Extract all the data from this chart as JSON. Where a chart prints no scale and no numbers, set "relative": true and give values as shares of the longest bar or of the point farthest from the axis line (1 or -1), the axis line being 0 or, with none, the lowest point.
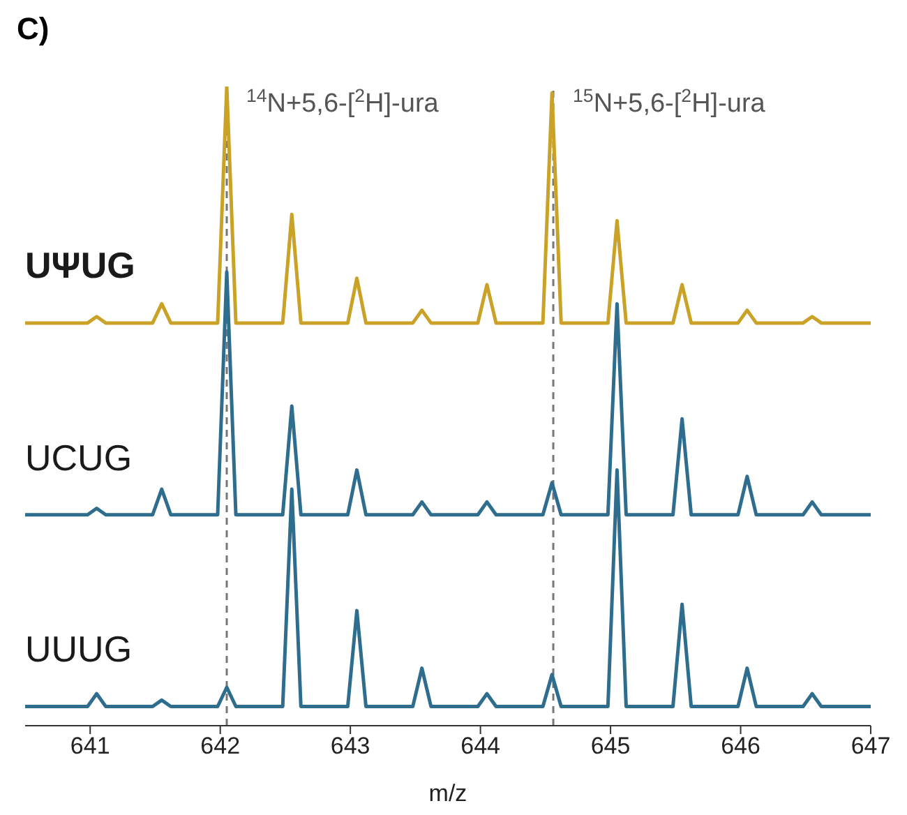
{
  "chart_data": {
    "type": "line",
    "title": "C)",
    "relative": true,
    "xlabel": "m/z",
    "xlim": [
      640.5,
      647
    ],
    "xticks": [
      641,
      642,
      643,
      644,
      645,
      646,
      647
    ],
    "ref_lines": [
      {
        "axis": "x",
        "value": 642.05,
        "label": "$^{14}$N+5,6-[$^{2}$H]-ura",
        "line_style": "dashed",
        "color": "#777777"
      },
      {
        "axis": "x",
        "value": 644.56,
        "label": "$^{15}$N+5,6-[$^{2}$H]-ura",
        "line_style": "dashed",
        "color": "#777777"
      }
    ],
    "x": [
      640.5,
      640.98,
      641.05,
      641.12,
      641.48,
      641.55,
      641.62,
      641.98,
      642.05,
      642.12,
      642.48,
      642.55,
      642.62,
      642.98,
      643.05,
      643.12,
      643.48,
      643.55,
      643.62,
      643.98,
      644.05,
      644.12,
      644.48,
      644.55,
      644.62,
      644.98,
      645.05,
      645.12,
      645.48,
      645.55,
      645.62,
      645.98,
      646.05,
      646.12,
      646.48,
      646.55,
      646.62,
      647
    ],
    "series": [
      {
        "name": "UΨUG",
        "color": "#c9a227",
        "values": [
          0.63,
          0.63,
          0.64,
          0.63,
          0.63,
          0.66,
          0.63,
          0.63,
          1,
          0.63,
          0.63,
          0.8,
          0.63,
          0.63,
          0.7,
          0.63,
          0.63,
          0.65,
          0.63,
          0.63,
          0.69,
          0.63,
          0.63,
          0.99,
          0.63,
          0.63,
          0.79,
          0.63,
          0.63,
          0.69,
          0.63,
          0.63,
          0.65,
          0.63,
          0.63,
          0.64,
          0.63,
          0.63
        ]
      },
      {
        "name": "UCUG",
        "color": "#2e6d8e",
        "values": [
          0.33,
          0.33,
          0.34,
          0.33,
          0.33,
          0.37,
          0.33,
          0.33,
          0.71,
          0.33,
          0.33,
          0.5,
          0.33,
          0.33,
          0.4,
          0.33,
          0.33,
          0.35,
          0.33,
          0.33,
          0.35,
          0.33,
          0.33,
          0.38,
          0.33,
          0.33,
          0.66,
          0.33,
          0.33,
          0.48,
          0.33,
          0.33,
          0.39,
          0.33,
          0.33,
          0.35,
          0.33,
          0.33
        ]
      },
      {
        "name": "UUUG",
        "color": "#2e6d8e",
        "values": [
          0.03,
          0.03,
          0.05,
          0.03,
          0.03,
          0.04,
          0.03,
          0.03,
          0.06,
          0.03,
          0.03,
          0.37,
          0.03,
          0.03,
          0.18,
          0.03,
          0.03,
          0.09,
          0.03,
          0.03,
          0.05,
          0.03,
          0.03,
          0.08,
          0.03,
          0.03,
          0.4,
          0.03,
          0.03,
          0.19,
          0.03,
          0.03,
          0.09,
          0.03,
          0.03,
          0.05,
          0.03,
          0.03
        ]
      }
    ]
  }
}
